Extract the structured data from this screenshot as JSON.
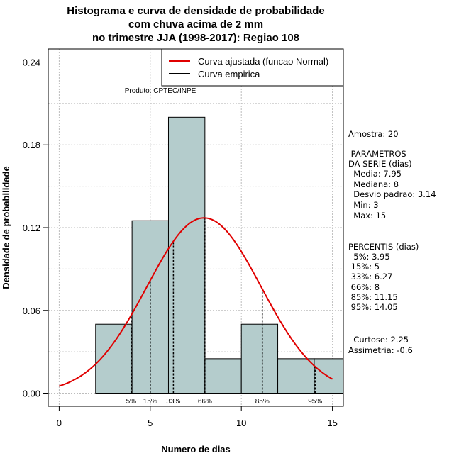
{
  "chart_data": {
    "type": "histogram",
    "title": [
      "Histograma e curva de densidade de probabilidade",
      "com chuva acima de 2 mm",
      "no trimestre JJA (1998-2017): Regiao 108"
    ],
    "xlabel": "Numero de dias",
    "ylabel": "Densidade de probabilidade",
    "xlim": [
      -0.6,
      15.6
    ],
    "ylim": [
      -0.0095,
      0.2495
    ],
    "xticks": [
      0,
      5,
      10,
      15
    ],
    "yticks": [
      0.0,
      0.06,
      0.12,
      0.18,
      0.24
    ],
    "ytick_labels": [
      "0.00",
      "0.06",
      "0.12",
      "0.18",
      "0.24"
    ],
    "grid": true,
    "bar_color": "#b4cccc",
    "bins": [
      {
        "from": 2,
        "to": 4,
        "density": 0.05
      },
      {
        "from": 4,
        "to": 6,
        "density": 0.125
      },
      {
        "from": 6,
        "to": 8,
        "density": 0.2
      },
      {
        "from": 8,
        "to": 10,
        "density": 0.025
      },
      {
        "from": 10,
        "to": 12,
        "density": 0.05
      },
      {
        "from": 12,
        "to": 14,
        "density": 0.025
      },
      {
        "from": 14,
        "to": 16,
        "density": 0.025
      }
    ],
    "normal_fit": {
      "mean": 7.95,
      "sd": 3.14,
      "x_from": 0,
      "x_to": 15,
      "color": "#e00000"
    },
    "percentiles": [
      {
        "label": "5%",
        "value": 3.95
      },
      {
        "label": "15%",
        "value": 5
      },
      {
        "label": "33%",
        "value": 6.27
      },
      {
        "label": "66%",
        "value": 8
      },
      {
        "label": "85%",
        "value": 11.15
      },
      {
        "label": "95%",
        "value": 14.05
      }
    ],
    "legend": {
      "position": "top-right",
      "entries": [
        {
          "label": "Curva ajustada (funcao Normal)",
          "color": "#e00000"
        },
        {
          "label": "Curva empirica",
          "color": "#000000"
        }
      ]
    },
    "annotation": "Produto: CPTEC/INPE"
  },
  "stats": {
    "amostra": "Amostra: 20",
    "param_title1": " PARAMETROS",
    "param_title2": "DA SERIE (dias)",
    "media": "  Media: 7.95",
    "mediana": "  Mediana: 8",
    "desvio": "  Desvio padrao: 3.14",
    "min": "  Min: 3",
    "max": "  Max: 15",
    "perc_title": "PERCENTIS (dias)",
    "p5": "  5%: 3.95",
    "p15": " 15%: 5",
    "p33": " 33%: 6.27",
    "p66": " 66%: 8",
    "p85": " 85%: 11.15",
    "p95": " 95%: 14.05",
    "curtose": "  Curtose: 2.25",
    "assimetria": "Assimetria: -0.6"
  }
}
